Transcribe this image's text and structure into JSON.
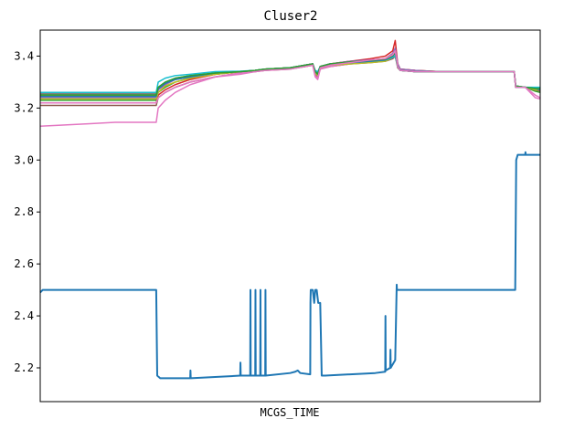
{
  "chart_data": {
    "type": "line",
    "title": "Cluser2",
    "xlabel": "MCGS_TIME",
    "ylabel": "",
    "xlim": [
      0,
      100
    ],
    "ylim": [
      2.07,
      3.5
    ],
    "grid": false,
    "legend": "none",
    "y_ticks": [
      2.2,
      2.4,
      2.6,
      2.8,
      3.0,
      3.2,
      3.4
    ],
    "y_tick_labels": [
      "2.2",
      "2.4",
      "2.6",
      "2.8",
      "3.0",
      "3.2",
      "3.4"
    ],
    "x_tick_labels": [],
    "series": [
      {
        "color": "#1f77b4",
        "x": [
          0,
          0.5,
          23.2,
          23.4,
          24.0,
          30.0,
          30.05,
          30.1,
          35.0,
          40.0,
          40.05,
          40.1,
          42.0,
          42.05,
          42.1,
          43.0,
          43.05,
          43.1,
          44.0,
          44.05,
          44.1,
          44.5,
          45.0,
          45.05,
          45.1,
          50.0,
          51.0,
          51.5,
          52.0,
          54.0,
          54.05,
          54.1,
          54.5,
          54.8,
          55.0,
          55.3,
          55.6,
          56.0,
          56.3,
          57.0,
          62.0,
          67.0,
          69.0,
          69.05,
          69.1,
          70.0,
          70.05,
          70.1,
          71.0,
          71.3,
          71.35,
          71.5,
          71.55,
          72.0,
          95.0,
          95.2,
          95.5,
          97.0,
          97.05,
          97.1,
          100
        ],
        "values": [
          2.49,
          2.5,
          2.5,
          2.17,
          2.16,
          2.16,
          2.19,
          2.16,
          2.165,
          2.17,
          2.22,
          2.17,
          2.17,
          2.5,
          2.17,
          2.17,
          2.5,
          2.17,
          2.17,
          2.5,
          2.17,
          2.17,
          2.17,
          2.5,
          2.17,
          2.18,
          2.185,
          2.19,
          2.18,
          2.175,
          2.45,
          2.5,
          2.5,
          2.45,
          2.5,
          2.5,
          2.45,
          2.45,
          2.17,
          2.17,
          2.175,
          2.18,
          2.185,
          2.4,
          2.19,
          2.2,
          2.27,
          2.2,
          2.23,
          2.52,
          2.5,
          2.5,
          2.5,
          2.5,
          2.5,
          3.0,
          3.02,
          3.02,
          3.03,
          3.02,
          3.02
        ]
      },
      {
        "color": "#ff7f0e",
        "x": [
          0,
          23.2,
          23.6,
          25,
          27,
          30,
          35,
          40,
          43,
          45,
          50,
          53,
          54.5,
          55,
          55.5,
          56,
          58,
          62,
          66,
          69,
          70.5,
          71,
          71.5,
          72,
          75,
          80,
          90,
          94.8,
          95.1,
          97,
          99,
          100
        ],
        "values": [
          3.25,
          3.25,
          3.27,
          3.29,
          3.31,
          3.32,
          3.335,
          3.34,
          3.345,
          3.35,
          3.355,
          3.365,
          3.37,
          3.34,
          3.33,
          3.36,
          3.37,
          3.38,
          3.385,
          3.39,
          3.41,
          3.43,
          3.37,
          3.35,
          3.345,
          3.34,
          3.34,
          3.34,
          3.28,
          3.28,
          3.27,
          3.27
        ]
      },
      {
        "color": "#2ca02c",
        "x": [
          0,
          23.2,
          23.6,
          25,
          27,
          30,
          35,
          40,
          43,
          45,
          50,
          53,
          54.5,
          55,
          55.5,
          56,
          58,
          62,
          66,
          69,
          70.5,
          71,
          71.5,
          72,
          75,
          80,
          90,
          94.8,
          95.1,
          97,
          99,
          100
        ],
        "values": [
          3.23,
          3.23,
          3.26,
          3.28,
          3.3,
          3.315,
          3.33,
          3.34,
          3.345,
          3.35,
          3.355,
          3.36,
          3.37,
          3.34,
          3.335,
          3.36,
          3.37,
          3.375,
          3.38,
          3.385,
          3.4,
          3.42,
          3.36,
          3.345,
          3.34,
          3.34,
          3.34,
          3.34,
          3.28,
          3.28,
          3.265,
          3.26
        ]
      },
      {
        "color": "#d62728",
        "x": [
          0,
          23.2,
          23.6,
          25,
          27,
          30,
          35,
          40,
          43,
          45,
          50,
          53,
          54.5,
          55,
          55.5,
          56,
          58,
          62,
          66,
          69,
          70.5,
          71,
          71.5,
          72,
          75,
          80,
          90,
          94.8,
          95.1,
          97,
          99,
          100
        ],
        "values": [
          3.22,
          3.22,
          3.25,
          3.27,
          3.29,
          3.31,
          3.33,
          3.34,
          3.345,
          3.35,
          3.355,
          3.365,
          3.37,
          3.33,
          3.32,
          3.36,
          3.37,
          3.38,
          3.39,
          3.4,
          3.42,
          3.46,
          3.37,
          3.35,
          3.345,
          3.34,
          3.34,
          3.34,
          3.285,
          3.28,
          3.27,
          3.27
        ]
      },
      {
        "color": "#9467bd",
        "x": [
          0,
          23.2,
          23.6,
          25,
          27,
          30,
          35,
          40,
          43,
          45,
          50,
          53,
          54.5,
          55,
          55.5,
          56,
          58,
          62,
          66,
          69,
          70.5,
          71,
          71.5,
          72,
          75,
          80,
          90,
          94.8,
          95.1,
          97,
          99,
          100
        ],
        "values": [
          3.24,
          3.24,
          3.27,
          3.29,
          3.31,
          3.32,
          3.335,
          3.34,
          3.345,
          3.35,
          3.355,
          3.365,
          3.37,
          3.34,
          3.33,
          3.36,
          3.37,
          3.38,
          3.385,
          3.39,
          3.41,
          3.43,
          3.37,
          3.35,
          3.345,
          3.34,
          3.34,
          3.34,
          3.285,
          3.28,
          3.27,
          3.27
        ]
      },
      {
        "color": "#8c564b",
        "x": [
          0,
          23.2,
          23.6,
          25,
          27,
          30,
          35,
          40,
          43,
          45,
          50,
          53,
          54.5,
          55,
          55.5,
          56,
          58,
          62,
          66,
          69,
          70.5,
          71,
          71.5,
          72,
          75,
          80,
          90,
          94.8,
          95.1,
          97,
          99,
          100
        ],
        "values": [
          3.21,
          3.21,
          3.24,
          3.26,
          3.28,
          3.3,
          3.32,
          3.335,
          3.34,
          3.345,
          3.35,
          3.36,
          3.365,
          3.33,
          3.32,
          3.35,
          3.36,
          3.37,
          3.375,
          3.38,
          3.39,
          3.4,
          3.355,
          3.345,
          3.34,
          3.34,
          3.34,
          3.34,
          3.28,
          3.28,
          3.27,
          3.265
        ]
      },
      {
        "color": "#e377c2",
        "x": [
          0,
          5,
          10,
          15,
          20,
          23.2,
          23.6,
          25,
          27,
          30,
          35,
          40,
          43,
          45,
          50,
          53,
          54.5,
          55,
          55.5,
          56,
          58,
          62,
          66,
          69,
          70.5,
          71,
          71.5,
          72,
          75,
          80,
          90,
          94.8,
          95.1,
          97,
          98,
          99,
          100
        ],
        "values": [
          3.13,
          3.135,
          3.14,
          3.145,
          3.145,
          3.145,
          3.2,
          3.23,
          3.26,
          3.29,
          3.32,
          3.335,
          3.34,
          3.345,
          3.355,
          3.36,
          3.365,
          3.32,
          3.31,
          3.35,
          3.36,
          3.37,
          3.38,
          3.385,
          3.395,
          3.42,
          3.36,
          3.345,
          3.34,
          3.34,
          3.34,
          3.34,
          3.28,
          3.28,
          3.26,
          3.24,
          3.235
        ]
      },
      {
        "color": "#7f7f7f",
        "x": [
          0,
          23.2,
          23.6,
          25,
          27,
          30,
          35,
          40,
          43,
          45,
          50,
          53,
          54.5,
          55,
          55.5,
          56,
          58,
          62,
          66,
          69,
          70.5,
          71,
          71.5,
          72,
          75,
          80,
          90,
          94.8,
          95.1,
          97,
          99,
          100
        ],
        "values": [
          3.255,
          3.255,
          3.28,
          3.3,
          3.315,
          3.325,
          3.335,
          3.34,
          3.345,
          3.35,
          3.355,
          3.365,
          3.37,
          3.34,
          3.33,
          3.36,
          3.37,
          3.375,
          3.38,
          3.385,
          3.4,
          3.41,
          3.36,
          3.345,
          3.34,
          3.34,
          3.34,
          3.34,
          3.285,
          3.28,
          3.275,
          3.275
        ]
      },
      {
        "color": "#bcbd22",
        "x": [
          0,
          23.2,
          23.6,
          25,
          27,
          30,
          35,
          40,
          43,
          45,
          50,
          53,
          54.5,
          55,
          55.5,
          56,
          58,
          62,
          66,
          69,
          70.5,
          71,
          71.5,
          72,
          75,
          80,
          90,
          94.8,
          95.1,
          97,
          99,
          100
        ],
        "values": [
          3.235,
          3.235,
          3.26,
          3.285,
          3.3,
          3.315,
          3.33,
          3.34,
          3.345,
          3.35,
          3.355,
          3.36,
          3.365,
          3.335,
          3.325,
          3.355,
          3.365,
          3.37,
          3.375,
          3.38,
          3.395,
          3.4,
          3.36,
          3.345,
          3.34,
          3.34,
          3.34,
          3.34,
          3.28,
          3.28,
          3.27,
          3.27
        ]
      },
      {
        "color": "#17becf",
        "x": [
          0,
          23.2,
          23.6,
          25,
          27,
          30,
          35,
          40,
          43,
          45,
          50,
          53,
          54.5,
          55,
          55.5,
          56,
          58,
          62,
          66,
          69,
          70.5,
          71,
          71.5,
          72,
          75,
          80,
          90,
          94.8,
          95.1,
          97,
          99,
          100
        ],
        "values": [
          3.26,
          3.26,
          3.3,
          3.315,
          3.325,
          3.33,
          3.34,
          3.342,
          3.345,
          3.35,
          3.355,
          3.365,
          3.37,
          3.345,
          3.34,
          3.36,
          3.37,
          3.375,
          3.38,
          3.385,
          3.395,
          3.4,
          3.36,
          3.345,
          3.34,
          3.34,
          3.34,
          3.34,
          3.285,
          3.28,
          3.28,
          3.28
        ]
      },
      {
        "color": "#1f77b4",
        "x": [
          0,
          23.2,
          23.6,
          25,
          27,
          30,
          35,
          40,
          43,
          45,
          50,
          53,
          54.5,
          55,
          55.5,
          56,
          58,
          62,
          66,
          69,
          70.5,
          71,
          71.5,
          72,
          75,
          80,
          90,
          94.8,
          95.1,
          97,
          99,
          100
        ],
        "values": [
          3.245,
          3.245,
          3.275,
          3.295,
          3.31,
          3.32,
          3.335,
          3.34,
          3.345,
          3.35,
          3.355,
          3.365,
          3.37,
          3.34,
          3.33,
          3.36,
          3.37,
          3.375,
          3.38,
          3.385,
          3.4,
          3.41,
          3.36,
          3.345,
          3.34,
          3.34,
          3.34,
          3.34,
          3.28,
          3.28,
          3.275,
          3.27
        ]
      },
      {
        "color": "#2ca02c",
        "x": [
          0,
          23.2,
          23.6,
          25,
          27,
          30,
          35,
          40,
          43,
          45,
          50,
          53,
          54.5,
          55,
          55.5,
          56,
          58,
          62,
          66,
          69,
          70.5,
          71,
          71.5,
          72,
          75,
          80,
          90,
          94.8,
          95.1,
          97,
          99,
          100
        ],
        "values": [
          3.25,
          3.25,
          3.28,
          3.3,
          3.315,
          3.325,
          3.335,
          3.34,
          3.345,
          3.35,
          3.355,
          3.365,
          3.37,
          3.34,
          3.33,
          3.36,
          3.37,
          3.378,
          3.383,
          3.388,
          3.402,
          3.415,
          3.36,
          3.345,
          3.34,
          3.34,
          3.34,
          3.34,
          3.285,
          3.28,
          3.275,
          3.275
        ]
      },
      {
        "color": "#e377c2",
        "x": [
          0,
          23.2,
          23.6,
          25,
          27,
          30,
          35,
          40,
          43,
          45,
          50,
          53,
          54.5,
          55,
          55.5,
          56,
          58,
          62,
          66,
          69,
          70.5,
          71,
          71.5,
          72,
          75,
          80,
          90,
          94.8,
          95.1,
          97,
          99,
          100
        ],
        "values": [
          3.22,
          3.22,
          3.24,
          3.26,
          3.28,
          3.3,
          3.32,
          3.33,
          3.34,
          3.345,
          3.35,
          3.36,
          3.365,
          3.325,
          3.315,
          3.355,
          3.365,
          3.375,
          3.385,
          3.39,
          3.405,
          3.42,
          3.36,
          3.345,
          3.34,
          3.34,
          3.34,
          3.34,
          3.28,
          3.28,
          3.25,
          3.24
        ]
      }
    ]
  }
}
